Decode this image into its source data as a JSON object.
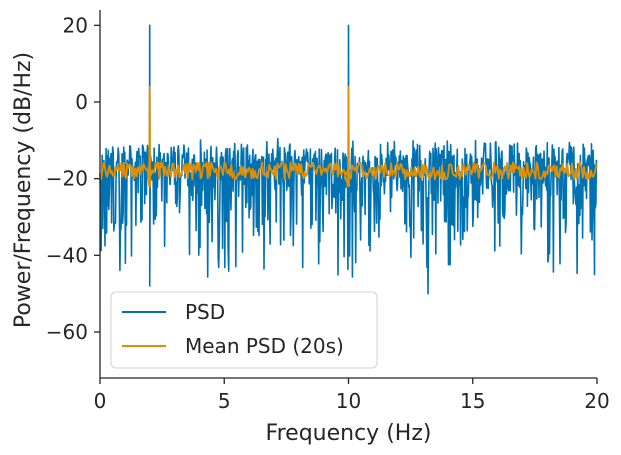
{
  "chart_data": {
    "type": "line",
    "title": "",
    "xlabel": "Frequency (Hz)",
    "ylabel": "Power/Frequency (dB/Hz)",
    "xlim": [
      0,
      20
    ],
    "ylim": [
      -72,
      24
    ],
    "x_ticks": [
      0,
      5,
      10,
      15,
      20
    ],
    "x_tick_labels": [
      "0",
      "5",
      "10",
      "15",
      "20"
    ],
    "y_ticks": [
      20,
      0,
      -20,
      -40,
      -60
    ],
    "y_tick_labels": [
      "20",
      "0",
      "−20",
      "−40",
      "−60"
    ],
    "grid": false,
    "legend_position": "lower-left",
    "series": [
      {
        "name": "PSD",
        "color": "#0072b2",
        "description": "noisy power spectral density, baseline around -18 dB/Hz with spread from about -30 to -9 dB/Hz",
        "baseline": -18,
        "peaks": [
          {
            "x": 2,
            "y": 20
          },
          {
            "x": 10,
            "y": 20
          }
        ],
        "notable_minima": [
          {
            "x": 2.0,
            "y": -48
          },
          {
            "x": 13.2,
            "y": -50
          },
          {
            "x": 19.9,
            "y": -45
          }
        ]
      },
      {
        "name": "Mean PSD (20s)",
        "color": "#de8f05",
        "description": "averaged spectrum, flat around -18 dB/Hz",
        "baseline": -18,
        "peaks": [
          {
            "x": 2,
            "y": 4
          },
          {
            "x": 10,
            "y": 4
          }
        ]
      }
    ]
  }
}
